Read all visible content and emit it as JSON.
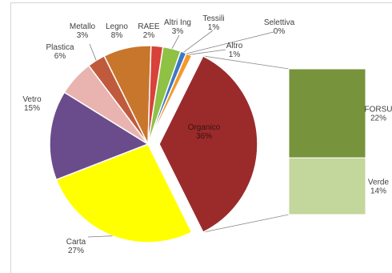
{
  "chart_data": {
    "type": "bar-of-pie",
    "title": "",
    "pie": {
      "series": [
        {
          "name": "Carta",
          "value": 27,
          "label": "Carta",
          "pct": "27%",
          "color": "#ffff00"
        },
        {
          "name": "Vetro",
          "value": 15,
          "label": "Vetro",
          "pct": "15%",
          "color": "#6a4c8c"
        },
        {
          "name": "Plastica",
          "value": 6,
          "label": "Plastica",
          "pct": "6%",
          "color": "#e9b3b0"
        },
        {
          "name": "Metallo",
          "value": 3,
          "label": "Metallo",
          "pct": "3%",
          "color": "#c05a3c"
        },
        {
          "name": "Legno",
          "value": 8,
          "label": "Legno",
          "pct": "8%",
          "color": "#c8762c"
        },
        {
          "name": "RAEE",
          "value": 2,
          "label": "RAEE",
          "pct": "2%",
          "color": "#d9413b"
        },
        {
          "name": "Altri Ing",
          "value": 3,
          "label": "Altri Ing",
          "pct": "3%",
          "color": "#8ec144"
        },
        {
          "name": "Tessili",
          "value": 1,
          "label": "Tessili",
          "pct": "1%",
          "color": "#3e77c5"
        },
        {
          "name": "Selettiva",
          "value": 0,
          "label": "Selettiva",
          "pct": "0%",
          "color": "#7a5aa8"
        },
        {
          "name": "Altro",
          "value": 1,
          "label": "Altro",
          "pct": "1%",
          "color": "#f39a2a"
        },
        {
          "name": "Organico",
          "value": 36,
          "label": "Organico",
          "pct": "36%",
          "color": "#9b2b2b",
          "exploded": true
        }
      ]
    },
    "bar": {
      "series": [
        {
          "name": "FORSU",
          "value": 22,
          "label": "FORSU",
          "pct": "22%",
          "color": "#77933c"
        },
        {
          "name": "Verde",
          "value": 14,
          "label": "Verde",
          "pct": "14%",
          "color": "#c3d69b"
        }
      ]
    }
  }
}
